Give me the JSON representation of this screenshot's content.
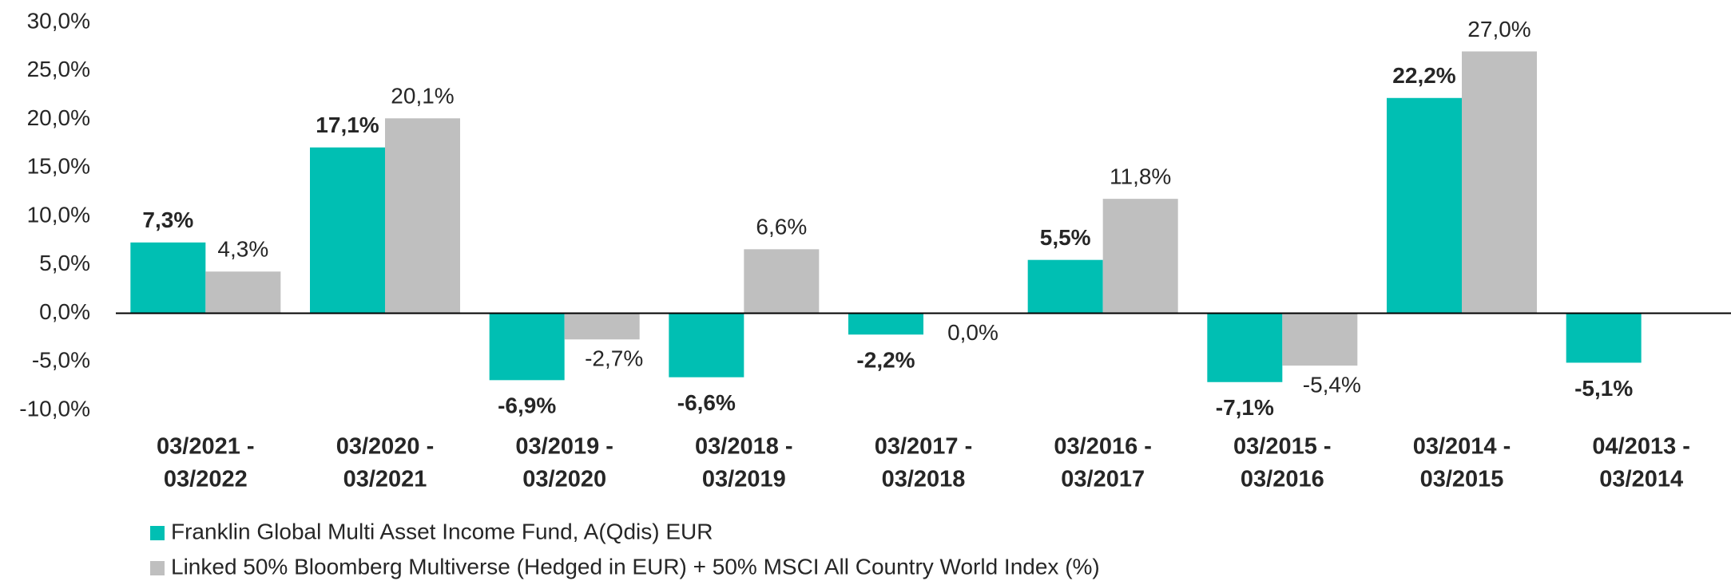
{
  "chart_data": {
    "type": "bar",
    "categories": [
      [
        "03/2021 -",
        "03/2022"
      ],
      [
        "03/2020 -",
        "03/2021"
      ],
      [
        "03/2019 -",
        "03/2020"
      ],
      [
        "03/2018 -",
        "03/2019"
      ],
      [
        "03/2017 -",
        "03/2018"
      ],
      [
        "03/2016 -",
        "03/2017"
      ],
      [
        "03/2015 -",
        "03/2016"
      ],
      [
        "03/2014 -",
        "03/2015"
      ],
      [
        "04/2013 -",
        "03/2014"
      ]
    ],
    "series": [
      {
        "name": "Franklin Global Multi Asset Income Fund, A(Qdis) EUR",
        "color": "#00bfb3",
        "values": [
          7.3,
          17.1,
          -6.9,
          -6.6,
          -2.2,
          5.5,
          -7.1,
          22.2,
          -5.1
        ],
        "value_labels": [
          "7,3%",
          "17,1%",
          "-6,9%",
          "-6,6%",
          "-2,2%",
          "5,5%",
          "-7,1%",
          "22,2%",
          "-5,1%"
        ]
      },
      {
        "name": "Linked 50% Bloomberg Multiverse (Hedged in EUR) + 50% MSCI All Country World Index (%)",
        "color": "#bfbfbf",
        "values": [
          4.3,
          20.1,
          -2.7,
          6.6,
          0.0,
          11.8,
          -5.4,
          27.0,
          null
        ],
        "value_labels": [
          "4,3%",
          "20,1%",
          "-2,7%",
          "6,6%",
          "0,0%",
          "11,8%",
          "-5,4%",
          "27,0%",
          null
        ]
      }
    ],
    "ylim": [
      -10,
      30
    ],
    "yticks": [
      {
        "value": -10,
        "label": "-10,0%"
      },
      {
        "value": -5,
        "label": "-5,0%"
      },
      {
        "value": 0,
        "label": "0,0%"
      },
      {
        "value": 5,
        "label": "5,0%"
      },
      {
        "value": 10,
        "label": "10,0%"
      },
      {
        "value": 15,
        "label": "15,0%"
      },
      {
        "value": 20,
        "label": "20,0%"
      },
      {
        "value": 25,
        "label": "25,0%"
      },
      {
        "value": 30,
        "label": "30,0%"
      }
    ],
    "grid": false
  }
}
